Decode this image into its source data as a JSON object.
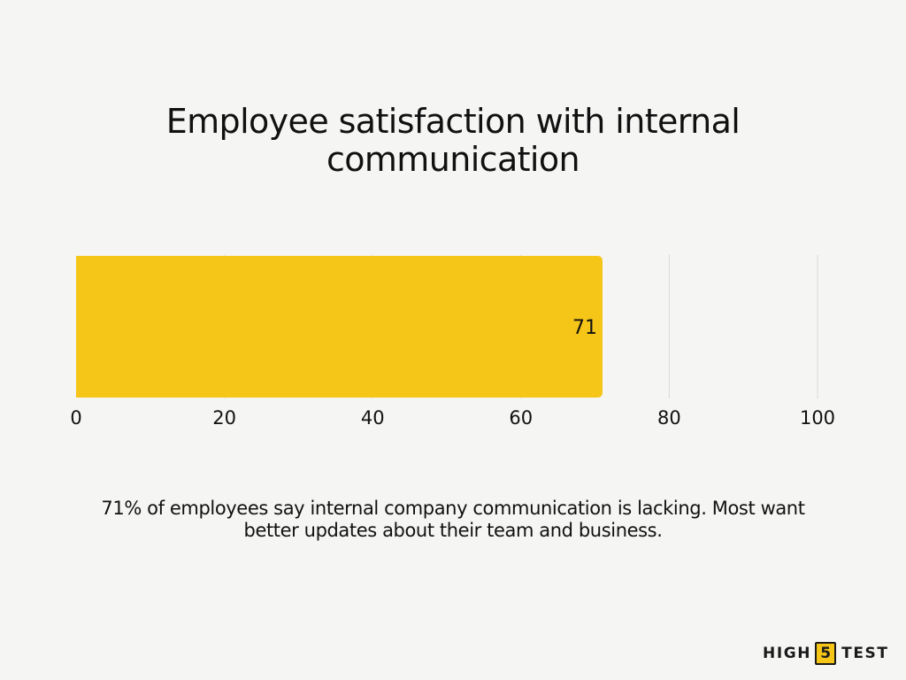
{
  "chart_data": {
    "type": "bar",
    "orientation": "horizontal",
    "title": "Employee satisfaction with internal communication",
    "categories": [
      ""
    ],
    "values": [
      71
    ],
    "data_labels": [
      "71"
    ],
    "xlim": [
      0,
      100
    ],
    "x_ticks": [
      0,
      20,
      40,
      60,
      80,
      100
    ],
    "x_tick_labels": [
      "0",
      "20",
      "40",
      "60",
      "80",
      "100"
    ],
    "grid": true,
    "legend": "none",
    "bar_color": "#F5C518",
    "grid_color": "#D9D9D9"
  },
  "caption": "71% of employees say internal company communication is lacking. Most want better updates about their team and business.",
  "logo": {
    "left": "HIGH",
    "number": "5",
    "right": "TEST"
  },
  "colors": {
    "background": "#F5F5F4",
    "accent": "#F5C518",
    "text": "#111111"
  }
}
